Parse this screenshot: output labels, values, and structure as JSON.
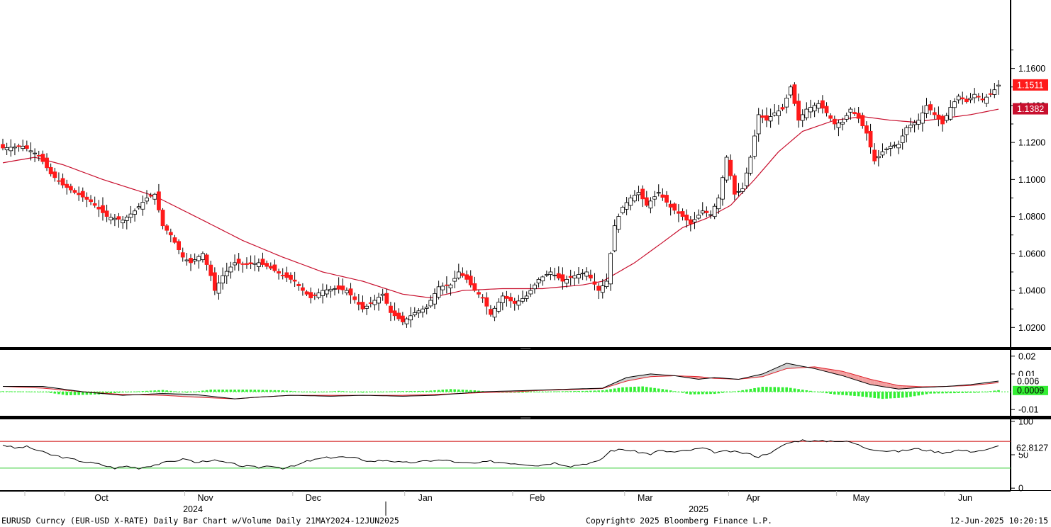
{
  "colors": {
    "candle_down": "#ff1a1a",
    "candle_up": "#ffffff",
    "wick": "#000000",
    "ma_line": "#c8102e",
    "macd_fast": "#000000",
    "macd_slow": "#e0202a",
    "macd_fill_pos": "#cfcfcf",
    "macd_fill_neg": "#f2a0a0",
    "histogram": "#33ee33",
    "rsi_line": "#000000",
    "rsi_upper": "#cc0000",
    "rsi_lower": "#33cc33",
    "badge_red": "#ff1a1a",
    "badge_green": "#33ee33"
  },
  "chart_data": [
    {
      "type": "candlestick",
      "price_axis": {
        "ticks": [
          "1.1600",
          "1.1400",
          "1.1200",
          "1.1000",
          "1.0800",
          "1.0600",
          "1.0400",
          "1.0200"
        ],
        "tick_values": [
          1.16,
          1.14,
          1.12,
          1.1,
          1.08,
          1.06,
          1.04,
          1.02
        ],
        "ylim": [
          1.0094,
          1.197
        ]
      },
      "last_price": "1.1511",
      "ma_value": "1.1382",
      "x_months": [
        "Oct",
        "Nov",
        "Dec",
        "Jan",
        "Feb",
        "Mar",
        "Apr",
        "May",
        "Jun"
      ],
      "years": [
        "2024",
        "2025"
      ],
      "close_anchors": [
        [
          0,
          1.117
        ],
        [
          5,
          1.118
        ],
        [
          9,
          1.113
        ],
        [
          12,
          1.103
        ],
        [
          15,
          1.097
        ],
        [
          18,
          1.093
        ],
        [
          22,
          1.088
        ],
        [
          26,
          1.08
        ],
        [
          30,
          1.078
        ],
        [
          33,
          1.083
        ],
        [
          36,
          1.09
        ],
        [
          38,
          1.092
        ],
        [
          40,
          1.075
        ],
        [
          42,
          1.07
        ],
        [
          45,
          1.058
        ],
        [
          47,
          1.055
        ],
        [
          50,
          1.06
        ],
        [
          52,
          1.048
        ],
        [
          53,
          1.04
        ],
        [
          55,
          1.048
        ],
        [
          58,
          1.055
        ],
        [
          61,
          1.054
        ],
        [
          64,
          1.055
        ],
        [
          67,
          1.052
        ],
        [
          70,
          1.048
        ],
        [
          73,
          1.045
        ],
        [
          75,
          1.04
        ],
        [
          77,
          1.036
        ],
        [
          80,
          1.04
        ],
        [
          83,
          1.041
        ],
        [
          86,
          1.04
        ],
        [
          88,
          1.035
        ],
        [
          90,
          1.03
        ],
        [
          92,
          1.033
        ],
        [
          95,
          1.038
        ],
        [
          97,
          1.028
        ],
        [
          100,
          1.023
        ],
        [
          103,
          1.028
        ],
        [
          106,
          1.031
        ],
        [
          109,
          1.042
        ],
        [
          112,
          1.043
        ],
        [
          114,
          1.05
        ],
        [
          116,
          1.046
        ],
        [
          118,
          1.04
        ],
        [
          120,
          1.036
        ],
        [
          122,
          1.027
        ],
        [
          125,
          1.037
        ],
        [
          128,
          1.033
        ],
        [
          131,
          1.037
        ],
        [
          134,
          1.046
        ],
        [
          137,
          1.05
        ],
        [
          140,
          1.045
        ],
        [
          143,
          1.048
        ],
        [
          146,
          1.05
        ],
        [
          149,
          1.04
        ],
        [
          151,
          1.045
        ],
        [
          153,
          1.075
        ],
        [
          155,
          1.085
        ],
        [
          157,
          1.09
        ],
        [
          159,
          1.093
        ],
        [
          161,
          1.086
        ],
        [
          164,
          1.093
        ],
        [
          167,
          1.085
        ],
        [
          170,
          1.08
        ],
        [
          172,
          1.076
        ],
        [
          175,
          1.083
        ],
        [
          177,
          1.081
        ],
        [
          179,
          1.09
        ],
        [
          181,
          1.112
        ],
        [
          183,
          1.092
        ],
        [
          185,
          1.095
        ],
        [
          187,
          1.112
        ],
        [
          189,
          1.135
        ],
        [
          191,
          1.132
        ],
        [
          193,
          1.136
        ],
        [
          195,
          1.138
        ],
        [
          197,
          1.15
        ],
        [
          199,
          1.132
        ],
        [
          201,
          1.138
        ],
        [
          204,
          1.141
        ],
        [
          206,
          1.136
        ],
        [
          208,
          1.13
        ],
        [
          210,
          1.131
        ],
        [
          212,
          1.138
        ],
        [
          214,
          1.133
        ],
        [
          216,
          1.125
        ],
        [
          218,
          1.11
        ],
        [
          220,
          1.115
        ],
        [
          222,
          1.118
        ],
        [
          224,
          1.119
        ],
        [
          226,
          1.128
        ],
        [
          229,
          1.132
        ],
        [
          231,
          1.14
        ],
        [
          233,
          1.135
        ],
        [
          235,
          1.13
        ],
        [
          237,
          1.139
        ],
        [
          239,
          1.145
        ],
        [
          241,
          1.142
        ],
        [
          243,
          1.146
        ],
        [
          245,
          1.143
        ],
        [
          247,
          1.146
        ],
        [
          249,
          1.151
        ]
      ],
      "ma_anchors": [
        [
          0,
          1.109
        ],
        [
          8,
          1.112
        ],
        [
          15,
          1.108
        ],
        [
          25,
          1.1
        ],
        [
          38,
          1.091
        ],
        [
          50,
          1.078
        ],
        [
          60,
          1.067
        ],
        [
          70,
          1.058
        ],
        [
          80,
          1.05
        ],
        [
          90,
          1.045
        ],
        [
          100,
          1.038
        ],
        [
          107,
          1.036
        ],
        [
          115,
          1.04
        ],
        [
          125,
          1.041
        ],
        [
          135,
          1.041
        ],
        [
          145,
          1.043
        ],
        [
          150,
          1.045
        ],
        [
          158,
          1.055
        ],
        [
          165,
          1.066
        ],
        [
          170,
          1.074
        ],
        [
          176,
          1.079
        ],
        [
          182,
          1.086
        ],
        [
          188,
          1.1
        ],
        [
          194,
          1.115
        ],
        [
          200,
          1.126
        ],
        [
          208,
          1.132
        ],
        [
          215,
          1.134
        ],
        [
          222,
          1.132
        ],
        [
          228,
          1.131
        ],
        [
          235,
          1.133
        ],
        [
          242,
          1.135
        ],
        [
          249,
          1.138
        ]
      ]
    },
    {
      "type": "line",
      "panel": "macd",
      "ticks": [
        "0.02",
        "0.01",
        "0.006",
        "0.0009",
        "-0.01"
      ],
      "tick_values": [
        0.02,
        0.01,
        -0.01
      ],
      "ylim": [
        -0.0135,
        0.0235
      ],
      "fast_value": "0.006",
      "hist_value": "0.0009",
      "fast_anchors": [
        [
          0,
          0.003
        ],
        [
          10,
          0.003
        ],
        [
          20,
          0.0
        ],
        [
          30,
          -0.002
        ],
        [
          40,
          -0.001
        ],
        [
          48,
          -0.0015
        ],
        [
          58,
          -0.004
        ],
        [
          64,
          -0.003
        ],
        [
          72,
          -0.002
        ],
        [
          82,
          -0.0025
        ],
        [
          90,
          -0.002
        ],
        [
          100,
          -0.0025
        ],
        [
          108,
          -0.002
        ],
        [
          114,
          -0.001
        ],
        [
          120,
          0.0
        ],
        [
          128,
          0.0005
        ],
        [
          135,
          0.001
        ],
        [
          142,
          0.0015
        ],
        [
          150,
          0.002
        ],
        [
          156,
          0.008
        ],
        [
          162,
          0.01
        ],
        [
          168,
          0.009
        ],
        [
          174,
          0.007
        ],
        [
          178,
          0.008
        ],
        [
          184,
          0.007
        ],
        [
          190,
          0.01
        ],
        [
          196,
          0.016
        ],
        [
          203,
          0.013
        ],
        [
          210,
          0.009
        ],
        [
          217,
          0.004
        ],
        [
          224,
          0.0015
        ],
        [
          230,
          0.0025
        ],
        [
          236,
          0.003
        ],
        [
          242,
          0.004
        ],
        [
          249,
          0.006
        ]
      ],
      "slow_anchors": [
        [
          0,
          0.003
        ],
        [
          10,
          0.002
        ],
        [
          20,
          0.0
        ],
        [
          30,
          -0.0015
        ],
        [
          40,
          -0.002
        ],
        [
          48,
          -0.003
        ],
        [
          58,
          -0.004
        ],
        [
          64,
          -0.003
        ],
        [
          72,
          -0.002
        ],
        [
          82,
          -0.002
        ],
        [
          90,
          -0.002
        ],
        [
          100,
          -0.002
        ],
        [
          108,
          -0.0015
        ],
        [
          114,
          -0.001
        ],
        [
          120,
          -0.0005
        ],
        [
          128,
          0.0
        ],
        [
          135,
          0.0008
        ],
        [
          142,
          0.0012
        ],
        [
          150,
          0.0018
        ],
        [
          156,
          0.006
        ],
        [
          162,
          0.0085
        ],
        [
          168,
          0.009
        ],
        [
          174,
          0.0085
        ],
        [
          178,
          0.0075
        ],
        [
          184,
          0.007
        ],
        [
          190,
          0.0085
        ],
        [
          196,
          0.013
        ],
        [
          203,
          0.014
        ],
        [
          210,
          0.0115
        ],
        [
          217,
          0.007
        ],
        [
          224,
          0.0035
        ],
        [
          230,
          0.0028
        ],
        [
          236,
          0.003
        ],
        [
          242,
          0.0035
        ],
        [
          249,
          0.0051
        ]
      ],
      "hist_anchors": [
        [
          0,
          0.0003
        ],
        [
          10,
          0.0
        ],
        [
          16,
          -0.002
        ],
        [
          24,
          -0.0015
        ],
        [
          32,
          0.0
        ],
        [
          40,
          0.001
        ],
        [
          46,
          -0.0005
        ],
        [
          52,
          0.0012
        ],
        [
          62,
          0.0012
        ],
        [
          70,
          0.0008
        ],
        [
          78,
          -0.0005
        ],
        [
          84,
          0.0005
        ],
        [
          90,
          -0.0005
        ],
        [
          98,
          0.0003
        ],
        [
          106,
          0.0005
        ],
        [
          112,
          0.0015
        ],
        [
          118,
          0.0008
        ],
        [
          124,
          -0.0005
        ],
        [
          130,
          -0.0005
        ],
        [
          138,
          0.0002
        ],
        [
          146,
          0.0005
        ],
        [
          150,
          0.0008
        ],
        [
          155,
          0.0025
        ],
        [
          160,
          0.003
        ],
        [
          166,
          0.0012
        ],
        [
          172,
          -0.0015
        ],
        [
          178,
          -0.0012
        ],
        [
          184,
          0.0005
        ],
        [
          190,
          0.0028
        ],
        [
          196,
          0.0025
        ],
        [
          202,
          0.0005
        ],
        [
          208,
          -0.0015
        ],
        [
          214,
          -0.0025
        ],
        [
          220,
          -0.004
        ],
        [
          226,
          -0.0032
        ],
        [
          232,
          -0.001
        ],
        [
          238,
          -0.0008
        ],
        [
          244,
          -0.0005
        ],
        [
          249,
          0.0009
        ]
      ]
    },
    {
      "type": "line",
      "panel": "rsi",
      "ticks": [
        "100",
        "62.8127",
        "50",
        "0"
      ],
      "tick_values": [
        100,
        50,
        0
      ],
      "ylim": [
        -3,
        103
      ],
      "levels": [
        70,
        30
      ],
      "last_value": "62.8127",
      "rsi_anchors": [
        [
          0,
          65
        ],
        [
          3,
          60
        ],
        [
          6,
          62
        ],
        [
          9,
          56
        ],
        [
          12,
          50
        ],
        [
          16,
          45
        ],
        [
          20,
          40
        ],
        [
          24,
          36
        ],
        [
          28,
          30
        ],
        [
          31,
          33
        ],
        [
          34,
          30
        ],
        [
          38,
          35
        ],
        [
          42,
          40
        ],
        [
          46,
          44
        ],
        [
          48,
          38
        ],
        [
          52,
          42
        ],
        [
          56,
          38
        ],
        [
          60,
          33
        ],
        [
          64,
          31
        ],
        [
          67,
          34
        ],
        [
          70,
          30
        ],
        [
          73,
          33
        ],
        [
          76,
          40
        ],
        [
          80,
          45
        ],
        [
          84,
          47
        ],
        [
          88,
          45
        ],
        [
          92,
          40
        ],
        [
          96,
          42
        ],
        [
          100,
          38
        ],
        [
          104,
          39
        ],
        [
          108,
          42
        ],
        [
          112,
          41
        ],
        [
          114,
          38
        ],
        [
          118,
          37
        ],
        [
          122,
          40
        ],
        [
          126,
          38
        ],
        [
          130,
          36
        ],
        [
          134,
          34
        ],
        [
          138,
          38
        ],
        [
          142,
          33
        ],
        [
          146,
          37
        ],
        [
          149,
          40
        ],
        [
          152,
          56
        ],
        [
          155,
          58
        ],
        [
          158,
          55
        ],
        [
          162,
          51
        ],
        [
          164,
          56
        ],
        [
          168,
          54
        ],
        [
          172,
          57
        ],
        [
          175,
          60
        ],
        [
          178,
          54
        ],
        [
          182,
          55
        ],
        [
          186,
          52
        ],
        [
          189,
          47
        ],
        [
          193,
          56
        ],
        [
          196,
          67
        ],
        [
          200,
          72
        ],
        [
          204,
          70
        ],
        [
          208,
          71
        ],
        [
          212,
          69
        ],
        [
          216,
          60
        ],
        [
          220,
          56
        ],
        [
          224,
          55
        ],
        [
          228,
          59
        ],
        [
          232,
          56
        ],
        [
          235,
          53
        ],
        [
          239,
          57
        ],
        [
          242,
          55
        ],
        [
          246,
          57
        ],
        [
          249,
          63
        ]
      ]
    }
  ],
  "footer": {
    "left": "EURUSD Curncy (EUR-USD X-RATE) Daily Bar Chart w/Volume  Daily 21MAY2024-12JUN2025",
    "center": "Copyright© 2025 Bloomberg Finance L.P.",
    "right": "12-Jun-2025 10:20:15"
  }
}
